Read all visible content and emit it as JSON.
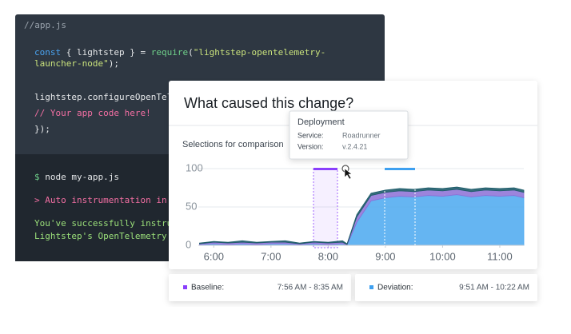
{
  "editor": {
    "filename": "//app.js",
    "code": [
      [
        {
          "text": "const",
          "color": "#4aa3f0"
        },
        {
          "text": " { lightstep } = ",
          "color": "#e6e8ea"
        },
        {
          "text": "require",
          "color": "#6fd08a"
        },
        {
          "text": "(",
          "color": "#e6e8ea"
        },
        {
          "text": "\"lightstep-opentelemetry-",
          "color": "#c9e27c"
        }
      ],
      [
        {
          "text": "launcher-node\"",
          "color": "#c9e27c"
        },
        {
          "text": ");",
          "color": "#e6e8ea"
        }
      ],
      [
        {
          "text": "lightstep.configureOpenTele",
          "color": "#e6e8ea"
        }
      ],
      [
        {
          "text": "// Your app code here!",
          "color": "#f36fa3"
        }
      ],
      [
        {
          "text": "});",
          "color": "#e6e8ea"
        }
      ]
    ],
    "terminal": [
      [
        {
          "text": "$",
          "color": "#6fd08a"
        },
        {
          "text": " node my-app.js",
          "color": "#e6e8ea"
        }
      ],
      [
        {
          "text": "> Auto instrumentation in p",
          "color": "#f36fa3"
        }
      ],
      [
        {
          "text": "You've successfully instrum",
          "color": "#9be07a"
        }
      ],
      [
        {
          "text": "Lightstep's OpenTelemetry L",
          "color": "#9be07a"
        }
      ]
    ]
  },
  "card": {
    "title": "What caused this change?",
    "subtitle": "Selections for comparison",
    "tooltip": {
      "title": "Deployment",
      "rows": [
        [
          "Service:",
          "Roadrunner"
        ],
        [
          "Version:",
          "v.2.4.21"
        ]
      ]
    }
  },
  "chart_data": {
    "type": "area",
    "stacked": true,
    "grid": true,
    "x": [
      5.75,
      6.0,
      6.25,
      6.5,
      6.75,
      7.0,
      7.25,
      7.5,
      7.75,
      8.0,
      8.25,
      8.33,
      8.5,
      8.75,
      9.0,
      9.25,
      9.5,
      9.75,
      10.0,
      10.25,
      10.5,
      10.75,
      11.0,
      11.25,
      11.42
    ],
    "series": [
      {
        "color": "#4aa8f0",
        "values": [
          1,
          2,
          1,
          2,
          1,
          2,
          2,
          1,
          2,
          1,
          2,
          0,
          30,
          58,
          62,
          64,
          63,
          65,
          64,
          66,
          63,
          65,
          64,
          65,
          62
        ]
      },
      {
        "color": "#8b6fd6",
        "values": [
          1,
          2,
          2,
          2,
          2,
          2,
          2,
          1,
          2,
          2,
          2,
          1,
          7,
          7,
          7,
          7,
          7,
          7,
          7,
          7,
          7,
          7,
          7,
          7,
          7
        ]
      },
      {
        "color": "#1e5c6a",
        "values": [
          1,
          1,
          1,
          2,
          1,
          1,
          2,
          1,
          1,
          1,
          2,
          1,
          3,
          3,
          3,
          3,
          3,
          3,
          3,
          3,
          3,
          3,
          3,
          3,
          3
        ]
      }
    ],
    "xlim": [
      5.73,
      11.42
    ],
    "xticks": [
      {
        "value": 6,
        "label": "6:00"
      },
      {
        "value": 7,
        "label": "7:00"
      },
      {
        "value": 8,
        "label": "8:00"
      },
      {
        "value": 9,
        "label": "9:00"
      },
      {
        "value": 10,
        "label": "10:00"
      },
      {
        "value": 11,
        "label": "11:00"
      }
    ],
    "ylim": [
      0,
      100
    ],
    "yticks": [
      0,
      50,
      100
    ]
  },
  "selections": [
    {
      "label": "Baseline:",
      "range": "7:56 AM - 8:35 AM",
      "color": "#8a3ffc"
    },
    {
      "label": "Deviation:",
      "range": "9:51 AM - 10:22 AM",
      "color": "#3ea0f0"
    }
  ]
}
